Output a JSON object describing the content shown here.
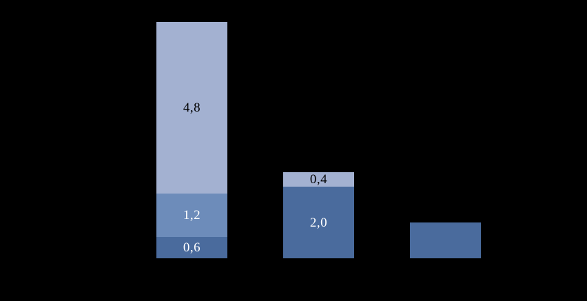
{
  "chart_data": {
    "type": "bar",
    "stacked": true,
    "title": "",
    "xlabel": "",
    "ylabel": "",
    "background_color": "#000000",
    "axes_visible": false,
    "grid": false,
    "legend": false,
    "categories": [
      "",
      "",
      ""
    ],
    "bar_totals": [
      6.6,
      2.4,
      1.0
    ],
    "ylim": [
      0,
      6.6
    ],
    "series": [
      {
        "name": "segment-dark-blue",
        "color": "#4a6b9d",
        "label_text_color": "#ffffff",
        "values": [
          0.6,
          2.0,
          1.0
        ],
        "data_labels": [
          "0,6",
          "2,0",
          ""
        ]
      },
      {
        "name": "segment-medium-blue",
        "color": "#6d8cba",
        "label_text_color": "#ffffff",
        "values": [
          1.2,
          0,
          0
        ],
        "data_labels": [
          "1,2",
          "",
          ""
        ]
      },
      {
        "name": "segment-light-blue",
        "color": "#a3b1d1",
        "label_text_color": "#000000",
        "values": [
          4.8,
          0.4,
          0
        ],
        "data_labels": [
          "4,8",
          "0,4",
          ""
        ]
      }
    ]
  }
}
